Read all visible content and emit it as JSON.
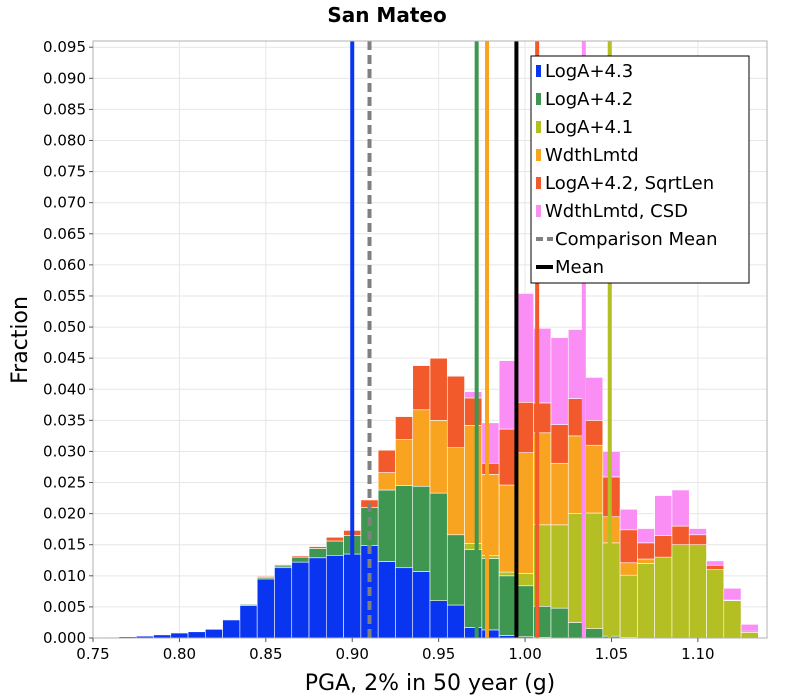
{
  "chart_data": {
    "type": "bar",
    "subtype": "stacked-histogram",
    "title": "San Mateo",
    "xlabel": "PGA, 2% in 50 year (g)",
    "ylabel": "Fraction",
    "xlim": [
      0.75,
      1.14
    ],
    "ylim": [
      0,
      0.096
    ],
    "grid": true,
    "legend_position": "top-right",
    "x_ticks": [
      "0.75",
      "0.80",
      "0.85",
      "0.90",
      "0.95",
      "1.00",
      "1.05",
      "1.10"
    ],
    "y_ticks": [
      "0.000",
      "0.005",
      "0.010",
      "0.015",
      "0.020",
      "0.025",
      "0.030",
      "0.035",
      "0.040",
      "0.045",
      "0.050",
      "0.055",
      "0.060",
      "0.065",
      "0.070",
      "0.075",
      "0.080",
      "0.085",
      "0.090",
      "0.095"
    ],
    "bin_width": 0.01,
    "bin_starts": [
      0.755,
      0.765,
      0.775,
      0.785,
      0.795,
      0.805,
      0.815,
      0.825,
      0.835,
      0.845,
      0.855,
      0.865,
      0.875,
      0.885,
      0.895,
      0.905,
      0.915,
      0.925,
      0.935,
      0.945,
      0.955,
      0.965,
      0.975,
      0.985,
      0.995,
      1.005,
      1.015,
      1.025,
      1.035,
      1.045,
      1.055,
      1.065,
      1.075,
      1.085,
      1.095,
      1.105,
      1.115,
      1.125,
      1.135
    ],
    "series": [
      {
        "name": "LogA+4.3",
        "color": "#0a35f0",
        "values": [
          0.0001,
          0.0002,
          0.0003,
          0.0005,
          0.0008,
          0.001,
          0.0014,
          0.0029,
          0.0052,
          0.0095,
          0.0113,
          0.0122,
          0.0129,
          0.0133,
          0.0135,
          0.0149,
          0.0123,
          0.0113,
          0.0107,
          0.006,
          0.0053,
          0.0017,
          0.0013,
          0.0004,
          0.0002,
          0.0001,
          0,
          0,
          0,
          0,
          0,
          0,
          0,
          0,
          0,
          0,
          0,
          0,
          0
        ]
      },
      {
        "name": "LogA+4.2",
        "color": "#3f9650",
        "values": [
          0,
          0,
          0,
          0,
          0,
          0,
          0,
          0,
          0.0002,
          0.0002,
          0.0003,
          0.0008,
          0.0015,
          0.0023,
          0.003,
          0.0061,
          0.0115,
          0.0132,
          0.0137,
          0.0173,
          0.0113,
          0.0125,
          0.0115,
          0.0096,
          0.0082,
          0.005,
          0.0048,
          0.0025,
          0.0015,
          0.0003,
          0.0001,
          0,
          0,
          0,
          0,
          0,
          0,
          0,
          0
        ]
      },
      {
        "name": "LogA+4.1",
        "color": "#b4bf24",
        "values": [
          0,
          0,
          0,
          0,
          0,
          0,
          0,
          0,
          0,
          0,
          0,
          0,
          0,
          0,
          0,
          0,
          0,
          0,
          0,
          0,
          0,
          0.001,
          0.0005,
          0.0006,
          0.002,
          0.0131,
          0.0134,
          0.0175,
          0.0186,
          0.015,
          0.01,
          0.012,
          0.013,
          0.015,
          0.015,
          0.011,
          0.006,
          0.0009,
          0
        ]
      },
      {
        "name": "WdthLmtd",
        "color": "#f9a421",
        "values": [
          0,
          0,
          0,
          0,
          0,
          0,
          0,
          0,
          0,
          0,
          0,
          0,
          0,
          0,
          0,
          0,
          0.0028,
          0.0074,
          0.0123,
          0.0117,
          0.014,
          0.019,
          0.013,
          0.014,
          0.0194,
          0.0148,
          0.0099,
          0.0125,
          0.0109,
          0.0042,
          0.002,
          0.0007,
          0,
          0,
          0,
          0,
          0,
          0,
          0
        ]
      },
      {
        "name": "LogA+4.2, SqrtLen",
        "color": "#f35a2b",
        "values": [
          0,
          0,
          0,
          0,
          0,
          0,
          0,
          0,
          0,
          0.0002,
          0.0002,
          0.0002,
          0.0003,
          0.0006,
          0.0008,
          0.0012,
          0.0036,
          0.0037,
          0.0071,
          0.01,
          0.0115,
          0.0044,
          0.0018,
          0.009,
          0.0081,
          0.0048,
          0.0062,
          0.006,
          0.004,
          0.0064,
          0.0053,
          0.0026,
          0.0035,
          0.003,
          0.0016,
          0.0007,
          0.0001,
          0.0002,
          0
        ]
      },
      {
        "name": "WdthLmtd, CSD",
        "color": "#fa8ef5",
        "values": [
          0,
          0,
          0,
          0,
          0,
          0,
          0,
          0,
          0,
          0,
          0,
          0,
          0,
          0,
          0,
          0,
          0,
          0,
          0,
          0.0001,
          0.0001,
          0.001,
          0.0065,
          0.011,
          0.0175,
          0.012,
          0.014,
          0.0111,
          0.0069,
          0.0041,
          0.0033,
          0.0023,
          0.0064,
          0.0058,
          0.001,
          0.0007,
          0.0019,
          0.0011,
          0.0001
        ]
      }
    ],
    "vertical_lines": [
      {
        "series": "LogA+4.3",
        "x": 0.9,
        "color": "#0a35f0",
        "style": "solid"
      },
      {
        "series": "LogA+4.2",
        "x": 0.972,
        "color": "#3f9650",
        "style": "solid"
      },
      {
        "series": "WdthLmtd",
        "x": 0.978,
        "color": "#f9a421",
        "style": "solid"
      },
      {
        "series": "LogA+4.2, SqrtLen",
        "x": 1.007,
        "color": "#f35a2b",
        "style": "solid"
      },
      {
        "series": "WdthLmtd, CSD",
        "x": 1.034,
        "color": "#fa8ef5",
        "style": "solid"
      },
      {
        "series": "LogA+4.1",
        "x": 1.049,
        "color": "#b4bf24",
        "style": "solid"
      },
      {
        "series": "Comparison Mean",
        "x": 0.91,
        "color": "#808080",
        "style": "dashed"
      },
      {
        "series": "Mean",
        "x": 0.995,
        "color": "#000000",
        "style": "solid"
      }
    ],
    "legend": [
      {
        "label": "LogA+4.3",
        "color": "#0a35f0",
        "kind": "patch"
      },
      {
        "label": "LogA+4.2",
        "color": "#3f9650",
        "kind": "patch"
      },
      {
        "label": "LogA+4.1",
        "color": "#b4bf24",
        "kind": "patch"
      },
      {
        "label": "WdthLmtd",
        "color": "#f9a421",
        "kind": "patch"
      },
      {
        "label": "LogA+4.2, SqrtLen",
        "color": "#f35a2b",
        "kind": "patch"
      },
      {
        "label": "WdthLmtd, CSD",
        "color": "#fa8ef5",
        "kind": "patch"
      },
      {
        "label": "Comparison Mean",
        "color": "#808080",
        "kind": "dashed-line"
      },
      {
        "label": "Mean",
        "color": "#000000",
        "kind": "line"
      }
    ]
  }
}
